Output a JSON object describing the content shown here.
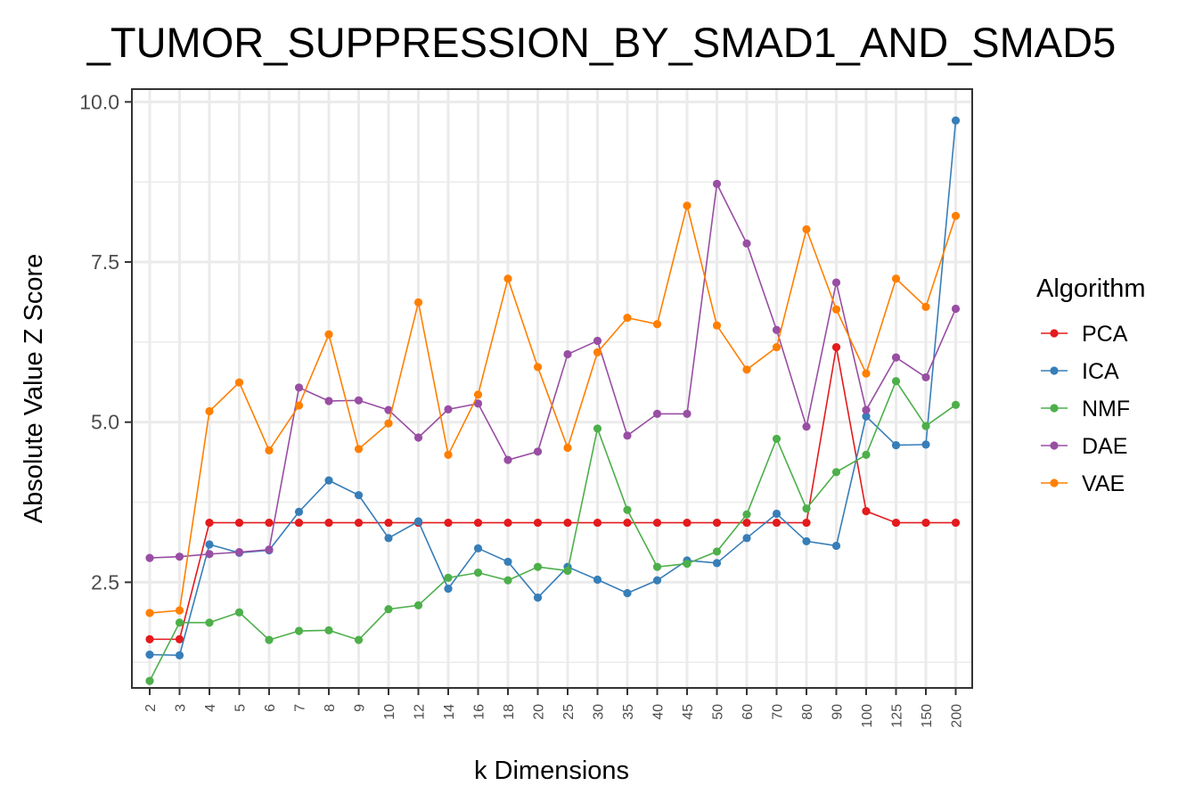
{
  "chart_data": {
    "type": "line",
    "title": "_TUMOR_SUPPRESSION_BY_SMAD1_AND_SMAD5",
    "xlabel": "k Dimensions",
    "ylabel": "Absolute Value Z Score",
    "categories": [
      "2",
      "3",
      "4",
      "5",
      "6",
      "7",
      "8",
      "9",
      "10",
      "12",
      "14",
      "16",
      "18",
      "20",
      "25",
      "30",
      "35",
      "40",
      "45",
      "50",
      "60",
      "70",
      "80",
      "90",
      "100",
      "125",
      "150",
      "200"
    ],
    "ylim": [
      0.85,
      10.2
    ],
    "y_ticks": [
      2.5,
      5.0,
      7.5,
      10.0
    ],
    "y_tick_labels": [
      "2.5",
      "5.0",
      "7.5",
      "10.0"
    ],
    "grid": true,
    "legend": {
      "title": "Algorithm",
      "position": "right"
    },
    "series": [
      {
        "name": "PCA",
        "color": "#e41a1c",
        "values": [
          1.61,
          1.61,
          3.43,
          3.43,
          3.43,
          3.43,
          3.43,
          3.43,
          3.43,
          3.43,
          3.43,
          3.43,
          3.43,
          3.43,
          3.43,
          3.43,
          3.43,
          3.43,
          3.43,
          3.43,
          3.43,
          3.43,
          3.43,
          6.17,
          3.61,
          3.43,
          3.43,
          3.43
        ]
      },
      {
        "name": "ICA",
        "color": "#377eb8",
        "values": [
          1.37,
          1.36,
          3.09,
          2.96,
          3.0,
          3.6,
          4.09,
          3.86,
          3.19,
          3.45,
          2.4,
          3.03,
          2.82,
          2.26,
          2.74,
          2.54,
          2.33,
          2.53,
          2.84,
          2.8,
          3.19,
          3.57,
          3.14,
          3.07,
          5.09,
          4.64,
          4.65,
          9.71
        ]
      },
      {
        "name": "NMF",
        "color": "#4daf4a",
        "values": [
          0.96,
          1.87,
          1.87,
          2.03,
          1.6,
          1.74,
          1.75,
          1.6,
          2.08,
          2.14,
          2.57,
          2.65,
          2.53,
          2.74,
          2.68,
          4.9,
          3.63,
          2.74,
          2.79,
          2.98,
          3.56,
          4.74,
          3.65,
          4.22,
          4.49,
          5.64,
          4.94,
          5.27
        ]
      },
      {
        "name": "DAE",
        "color": "#984ea3",
        "values": [
          2.88,
          2.9,
          2.94,
          2.97,
          3.01,
          5.54,
          5.33,
          5.34,
          5.19,
          4.76,
          5.2,
          5.29,
          4.41,
          4.54,
          6.06,
          6.27,
          4.79,
          5.13,
          5.13,
          8.72,
          7.79,
          6.44,
          4.93,
          7.18,
          5.19,
          6.01,
          5.7,
          6.77
        ]
      },
      {
        "name": "VAE",
        "color": "#ff7f00",
        "values": [
          2.02,
          2.06,
          5.17,
          5.62,
          4.56,
          5.26,
          6.37,
          4.58,
          4.98,
          6.87,
          4.49,
          5.43,
          7.24,
          5.86,
          4.6,
          6.09,
          6.63,
          6.53,
          8.38,
          6.51,
          5.82,
          6.17,
          8.01,
          6.76,
          5.76,
          7.24,
          6.8,
          8.22
        ]
      }
    ]
  }
}
